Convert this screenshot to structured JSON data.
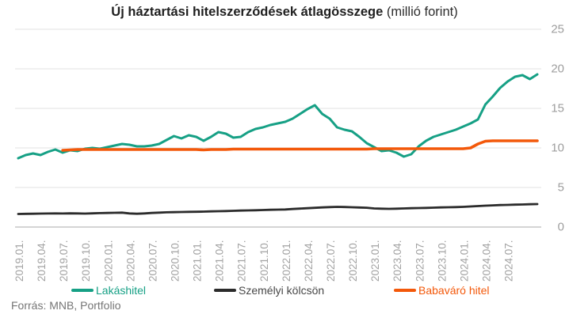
{
  "title": {
    "main": "Új háztartási hitelszerződések átlagösszege",
    "unit": "(millió forint)"
  },
  "source": "Forrás: MNB, Portfolio",
  "colors": {
    "housing_loan": "#16a085",
    "personal_loan": "#2b2b2b",
    "baby_loan": "#f3580a",
    "gridline": "#e2e2e2",
    "zero_line": "#a9a9a9",
    "axis_text": "#9e9e9e"
  },
  "chart_data": {
    "type": "line",
    "title": "Új háztartási hitelszerződések átlagösszege (millió forint)",
    "xlabel": "",
    "ylabel": "millió forint",
    "ylim": [
      0,
      25
    ],
    "y_ticks": [
      0,
      5,
      10,
      15,
      20,
      25
    ],
    "y_axis_side": "right",
    "grid": "horizontal",
    "legend_position": "bottom",
    "x_start_month": "2019.01.",
    "x_end_month": "2024.11.",
    "months_total": 71,
    "x_tick_every_n_months": 3,
    "x_tick_labels": [
      "2019.01.",
      "2019.04.",
      "2019.07.",
      "2019.10.",
      "2020.01.",
      "2020.04.",
      "2020.07.",
      "2020.10.",
      "2021.01.",
      "2021.04.",
      "2021.07.",
      "2021.10.",
      "2022.01.",
      "2022.04.",
      "2022.07.",
      "2022.10.",
      "2023.01.",
      "2023.04.",
      "2023.07.",
      "2023.10.",
      "2024.01.",
      "2024.04.",
      "2024.07."
    ],
    "series": [
      {
        "name": "Lakáshitel",
        "color": "#16a085",
        "stroke_width": 3,
        "values": [
          8.7,
          9.1,
          9.3,
          9.1,
          9.5,
          9.8,
          9.4,
          9.7,
          9.6,
          9.9,
          10.0,
          9.9,
          10.1,
          10.3,
          10.5,
          10.4,
          10.2,
          10.2,
          10.3,
          10.5,
          11.0,
          11.5,
          11.2,
          11.6,
          11.4,
          10.9,
          11.4,
          12.0,
          11.8,
          11.3,
          11.4,
          12.0,
          12.4,
          12.6,
          12.9,
          13.1,
          13.3,
          13.7,
          14.3,
          14.9,
          15.4,
          14.3,
          13.7,
          12.6,
          12.3,
          12.1,
          11.4,
          10.6,
          10.1,
          9.6,
          9.7,
          9.4,
          8.9,
          9.2,
          10.2,
          10.9,
          11.4,
          11.7,
          12.0,
          12.3,
          12.7,
          13.1,
          13.6,
          15.5,
          16.5,
          17.6,
          18.4,
          19.0,
          19.2,
          18.7,
          19.3
        ]
      },
      {
        "name": "Személyi kölcsön",
        "color": "#2b2b2b",
        "stroke_width": 2.8,
        "values": [
          1.65,
          1.67,
          1.68,
          1.7,
          1.71,
          1.72,
          1.71,
          1.73,
          1.72,
          1.7,
          1.73,
          1.76,
          1.78,
          1.8,
          1.82,
          1.72,
          1.68,
          1.72,
          1.78,
          1.82,
          1.86,
          1.88,
          1.9,
          1.92,
          1.93,
          1.95,
          1.98,
          2.0,
          2.02,
          2.05,
          2.08,
          2.1,
          2.12,
          2.15,
          2.18,
          2.2,
          2.22,
          2.28,
          2.33,
          2.38,
          2.43,
          2.48,
          2.52,
          2.55,
          2.53,
          2.5,
          2.47,
          2.44,
          2.35,
          2.32,
          2.3,
          2.32,
          2.35,
          2.38,
          2.4,
          2.42,
          2.45,
          2.48,
          2.5,
          2.52,
          2.55,
          2.6,
          2.65,
          2.7,
          2.74,
          2.78,
          2.8,
          2.83,
          2.85,
          2.88,
          2.9
        ]
      },
      {
        "name": "Babaváró hitel",
        "color": "#f3580a",
        "stroke_width": 3.6,
        "values": [
          null,
          null,
          null,
          null,
          null,
          null,
          9.7,
          9.75,
          9.8,
          9.8,
          9.8,
          9.8,
          9.8,
          9.8,
          9.8,
          9.8,
          9.8,
          9.8,
          9.8,
          9.8,
          9.8,
          9.8,
          9.8,
          9.8,
          9.8,
          9.75,
          9.8,
          9.8,
          9.8,
          9.85,
          9.85,
          9.85,
          9.85,
          9.85,
          9.85,
          9.85,
          9.85,
          9.85,
          9.85,
          9.85,
          9.85,
          9.85,
          9.85,
          9.85,
          9.85,
          9.85,
          9.85,
          9.85,
          9.9,
          9.9,
          9.9,
          9.9,
          9.9,
          9.9,
          9.9,
          9.9,
          9.9,
          9.9,
          9.9,
          9.9,
          9.9,
          10.0,
          10.5,
          10.85,
          10.9,
          10.9,
          10.9,
          10.9,
          10.9,
          10.9,
          10.9
        ]
      }
    ]
  }
}
